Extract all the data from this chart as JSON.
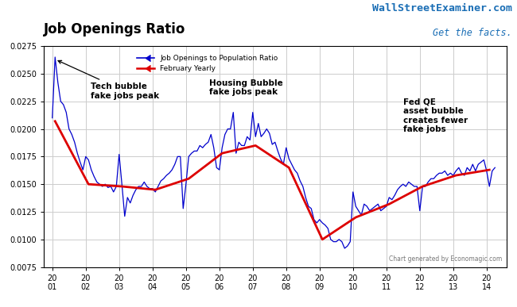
{
  "title": "Job Openings Ratio",
  "watermark_line1": "WallStreetExaminer.com",
  "watermark_line2": "Get the facts.",
  "credit": "Chart generated by Economagic.com",
  "legend_blue": "Job Openings to Population Ratio",
  "legend_red": "February Yearly",
  "ylim": [
    0.0075,
    0.0275
  ],
  "yticks": [
    0.0075,
    0.01,
    0.0125,
    0.015,
    0.0175,
    0.02,
    0.0225,
    0.025,
    0.0275
  ],
  "bg_color": "#ffffff",
  "grid_color": "#cccccc",
  "blue_color": "#0000cc",
  "red_color": "#dd0000",
  "monthly_data": {
    "dates": [
      2001.0,
      2001.083,
      2001.167,
      2001.25,
      2001.333,
      2001.417,
      2001.5,
      2001.583,
      2001.667,
      2001.75,
      2001.833,
      2001.917,
      2002.0,
      2002.083,
      2002.167,
      2002.25,
      2002.333,
      2002.417,
      2002.5,
      2002.583,
      2002.667,
      2002.75,
      2002.833,
      2002.917,
      2003.0,
      2003.083,
      2003.167,
      2003.25,
      2003.333,
      2003.417,
      2003.5,
      2003.583,
      2003.667,
      2003.75,
      2003.833,
      2003.917,
      2004.0,
      2004.083,
      2004.167,
      2004.25,
      2004.333,
      2004.417,
      2004.5,
      2004.583,
      2004.667,
      2004.75,
      2004.833,
      2004.917,
      2005.0,
      2005.083,
      2005.167,
      2005.25,
      2005.333,
      2005.417,
      2005.5,
      2005.583,
      2005.667,
      2005.75,
      2005.833,
      2005.917,
      2006.0,
      2006.083,
      2006.167,
      2006.25,
      2006.333,
      2006.417,
      2006.5,
      2006.583,
      2006.667,
      2006.75,
      2006.833,
      2006.917,
      2007.0,
      2007.083,
      2007.167,
      2007.25,
      2007.333,
      2007.417,
      2007.5,
      2007.583,
      2007.667,
      2007.75,
      2007.833,
      2007.917,
      2008.0,
      2008.083,
      2008.167,
      2008.25,
      2008.333,
      2008.417,
      2008.5,
      2008.583,
      2008.667,
      2008.75,
      2008.833,
      2008.917,
      2009.0,
      2009.083,
      2009.167,
      2009.25,
      2009.333,
      2009.417,
      2009.5,
      2009.583,
      2009.667,
      2009.75,
      2009.833,
      2009.917,
      2010.0,
      2010.083,
      2010.167,
      2010.25,
      2010.333,
      2010.417,
      2010.5,
      2010.583,
      2010.667,
      2010.75,
      2010.833,
      2010.917,
      2011.0,
      2011.083,
      2011.167,
      2011.25,
      2011.333,
      2011.417,
      2011.5,
      2011.583,
      2011.667,
      2011.75,
      2011.833,
      2011.917,
      2012.0,
      2012.083,
      2012.167,
      2012.25,
      2012.333,
      2012.417,
      2012.5,
      2012.583,
      2012.667,
      2012.75,
      2012.833,
      2012.917,
      2013.0,
      2013.083,
      2013.167,
      2013.25,
      2013.333,
      2013.417,
      2013.5,
      2013.583,
      2013.667,
      2013.75,
      2013.833,
      2013.917,
      2014.0,
      2014.083,
      2014.167,
      2014.25
    ],
    "values": [
      0.021,
      0.0265,
      0.0242,
      0.0225,
      0.0222,
      0.0215,
      0.02,
      0.0195,
      0.0188,
      0.0178,
      0.017,
      0.0163,
      0.0175,
      0.0172,
      0.0163,
      0.0157,
      0.0152,
      0.015,
      0.0148,
      0.015,
      0.0147,
      0.0148,
      0.0143,
      0.0148,
      0.0177,
      0.015,
      0.0121,
      0.0138,
      0.0133,
      0.014,
      0.0145,
      0.0148,
      0.0148,
      0.0152,
      0.0148,
      0.0146,
      0.0146,
      0.0143,
      0.0148,
      0.0153,
      0.0155,
      0.0158,
      0.016,
      0.0163,
      0.0168,
      0.0175,
      0.0175,
      0.0128,
      0.015,
      0.0175,
      0.0178,
      0.018,
      0.018,
      0.0185,
      0.0183,
      0.0186,
      0.0188,
      0.0195,
      0.0183,
      0.0165,
      0.0163,
      0.0183,
      0.0195,
      0.02,
      0.02,
      0.0215,
      0.0178,
      0.0188,
      0.0185,
      0.0185,
      0.0193,
      0.019,
      0.0215,
      0.0193,
      0.0205,
      0.0193,
      0.0196,
      0.02,
      0.0196,
      0.0186,
      0.0188,
      0.018,
      0.0173,
      0.0168,
      0.0183,
      0.0173,
      0.0168,
      0.0163,
      0.016,
      0.0153,
      0.0148,
      0.0138,
      0.013,
      0.0128,
      0.0118,
      0.0115,
      0.0118,
      0.0115,
      0.0113,
      0.011,
      0.01,
      0.0098,
      0.0098,
      0.01,
      0.0098,
      0.0092,
      0.0094,
      0.0098,
      0.0143,
      0.013,
      0.0126,
      0.0122,
      0.0132,
      0.013,
      0.0126,
      0.0128,
      0.013,
      0.0132,
      0.0126,
      0.0128,
      0.013,
      0.0138,
      0.0136,
      0.014,
      0.0145,
      0.0148,
      0.015,
      0.0148,
      0.0152,
      0.015,
      0.0148,
      0.0148,
      0.0126,
      0.0148,
      0.0148,
      0.0152,
      0.0155,
      0.0155,
      0.0158,
      0.016,
      0.016,
      0.0162,
      0.0158,
      0.016,
      0.0158,
      0.0162,
      0.0165,
      0.016,
      0.0158,
      0.0165,
      0.0162,
      0.0168,
      0.0162,
      0.0168,
      0.017,
      0.0172,
      0.0162,
      0.0148,
      0.0162,
      0.0165
    ]
  },
  "yearly_data": {
    "dates": [
      2001.083,
      2002.083,
      2003.083,
      2004.083,
      2005.083,
      2006.083,
      2007.083,
      2008.083,
      2009.083,
      2010.083,
      2011.083,
      2012.083,
      2013.083,
      2014.083
    ],
    "values": [
      0.0207,
      0.015,
      0.0148,
      0.0145,
      0.0155,
      0.0178,
      0.0185,
      0.0165,
      0.01,
      0.012,
      0.0132,
      0.0148,
      0.0158,
      0.0163
    ]
  },
  "xlim": [
    2000.75,
    2014.6
  ],
  "year_ticks": [
    2001,
    2002,
    2003,
    2004,
    2005,
    2006,
    2007,
    2008,
    2009,
    2010,
    2011,
    2012,
    2013,
    2014
  ],
  "year_labels": [
    "20\n01",
    "20\n02",
    "20\n03",
    "20\n04",
    "20\n05",
    "20\n06",
    "20\n07",
    "20\n08",
    "20\n09",
    "20\n10",
    "20\n11",
    "20\n12",
    "20\n13",
    "20\n14"
  ]
}
